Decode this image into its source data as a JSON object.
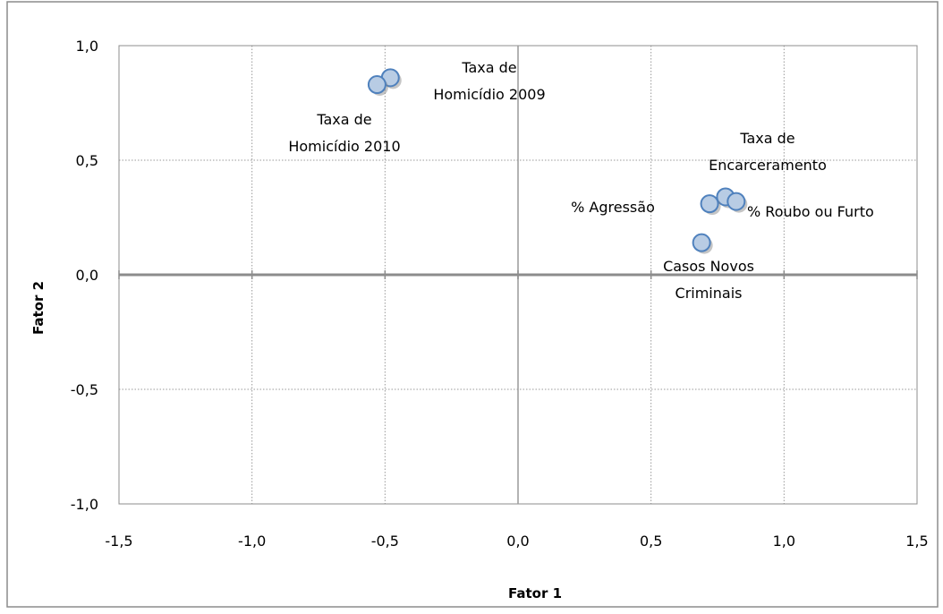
{
  "chart_data": {
    "type": "scatter",
    "title": "",
    "xlabel": "Fator 1",
    "ylabel": "Fator 2",
    "xlim": [
      -1.5,
      1.5
    ],
    "ylim": [
      -1.0,
      1.0
    ],
    "x_ticks": [
      "-1,5",
      "-1,0",
      "-0,5",
      "0,0",
      "0,5",
      "1,0",
      "1,5"
    ],
    "y_ticks": [
      "1,0",
      "0,5",
      "0,0",
      "-0,5",
      "-1,0"
    ],
    "grid": true,
    "marker_fill": "#b8cce4",
    "marker_stroke": "#4f81bd",
    "points": [
      {
        "label_lines": [
          "Taxa de",
          "Homicídio 2009"
        ],
        "x": -0.48,
        "y": 0.86
      },
      {
        "label_lines": [
          "Taxa de",
          "Homicídio 2010"
        ],
        "x": -0.53,
        "y": 0.83
      },
      {
        "label_lines": [
          "Taxa de",
          "Encarceramento"
        ],
        "x": 0.78,
        "y": 0.34
      },
      {
        "label_lines": [
          "% Agressão"
        ],
        "x": 0.72,
        "y": 0.31
      },
      {
        "label_lines": [
          "% Roubo ou Furto"
        ],
        "x": 0.82,
        "y": 0.32
      },
      {
        "label_lines": [
          "Casos Novos",
          "Criminais"
        ],
        "x": 0.69,
        "y": 0.14
      }
    ]
  }
}
